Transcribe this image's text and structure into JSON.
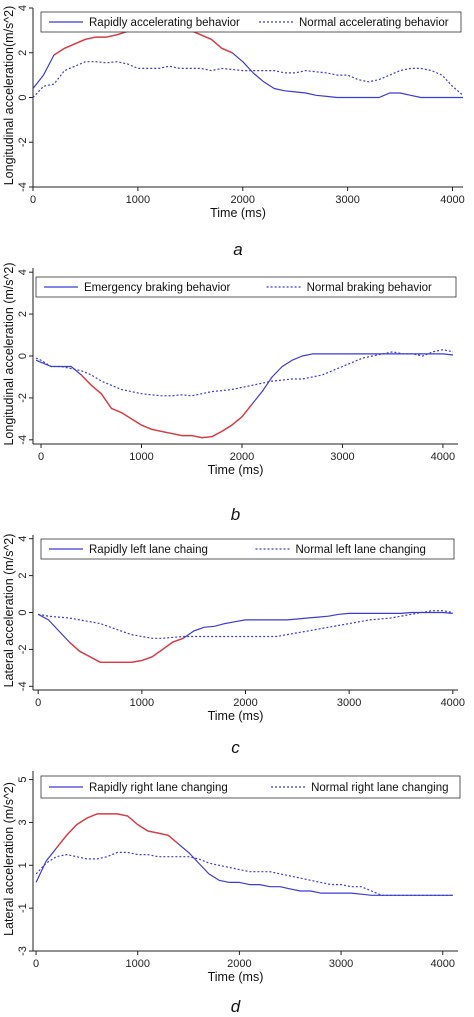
{
  "chart_data": [
    {
      "type": "line",
      "panel_label": "a",
      "xlabel": "Time (ms)",
      "ylabel": "Longitudinal acceleration(m/s^2)",
      "xlim": [
        0,
        4100
      ],
      "ylim": [
        -4,
        4
      ],
      "xticks": [
        0,
        1000,
        2000,
        3000,
        4000
      ],
      "yticks": [
        -4,
        -2,
        0,
        2,
        4
      ],
      "legend_position": "top",
      "series": [
        {
          "name": "Rapidly accelerating behavior",
          "style": "solid",
          "color": "#3b3bd6",
          "highlight_color": "#e03c3c",
          "highlight_range": [
            150,
            1950
          ],
          "x": [
            0,
            100,
            200,
            300,
            400,
            500,
            600,
            700,
            800,
            900,
            1000,
            1100,
            1200,
            1300,
            1400,
            1500,
            1600,
            1700,
            1800,
            1900,
            2000,
            2100,
            2200,
            2300,
            2400,
            2500,
            2600,
            2700,
            2800,
            2900,
            3000,
            3100,
            3200,
            3300,
            3400,
            3500,
            3600,
            3700,
            3800,
            3900,
            4000,
            4100
          ],
          "y": [
            0.4,
            1.0,
            1.9,
            2.2,
            2.4,
            2.6,
            2.7,
            2.7,
            2.8,
            2.95,
            3.05,
            3.15,
            3.2,
            3.1,
            3.05,
            3.0,
            2.8,
            2.6,
            2.2,
            2.0,
            1.6,
            1.1,
            0.7,
            0.4,
            0.3,
            0.25,
            0.2,
            0.1,
            0.05,
            0.0,
            0.0,
            0.0,
            0.0,
            0.0,
            0.2,
            0.2,
            0.1,
            0.0,
            0.0,
            0.0,
            0.0,
            0.0
          ]
        },
        {
          "name": "Normal accelerating behavior",
          "style": "dotted",
          "color": "#3b3bd6",
          "x": [
            0,
            100,
            200,
            300,
            400,
            500,
            600,
            700,
            800,
            900,
            1000,
            1100,
            1200,
            1300,
            1400,
            1500,
            1600,
            1700,
            1800,
            1900,
            2000,
            2100,
            2200,
            2300,
            2400,
            2500,
            2600,
            2700,
            2800,
            2900,
            3000,
            3100,
            3200,
            3300,
            3400,
            3500,
            3600,
            3700,
            3800,
            3900,
            4000,
            4100
          ],
          "y": [
            0.0,
            0.5,
            0.6,
            1.2,
            1.4,
            1.6,
            1.6,
            1.55,
            1.6,
            1.5,
            1.3,
            1.3,
            1.3,
            1.4,
            1.3,
            1.3,
            1.3,
            1.2,
            1.3,
            1.25,
            1.2,
            1.2,
            1.2,
            1.2,
            1.1,
            1.1,
            1.2,
            1.15,
            1.1,
            1.0,
            1.0,
            0.8,
            0.7,
            0.8,
            1.0,
            1.2,
            1.3,
            1.3,
            1.2,
            1.0,
            0.5,
            0.1
          ]
        }
      ]
    },
    {
      "type": "line",
      "panel_label": "b",
      "xlabel": "Time (ms)",
      "ylabel": "Longitudinal acceleration (m/s^2)",
      "xlim": [
        -80,
        4150
      ],
      "ylim": [
        -4.2,
        4.2
      ],
      "xticks": [
        0,
        1000,
        2000,
        3000,
        4000
      ],
      "yticks": [
        -4,
        -2,
        0,
        2,
        4
      ],
      "legend_position": "top",
      "series": [
        {
          "name": "Emergency braking behavior",
          "style": "solid",
          "color": "#3b3bd6",
          "highlight_color": "#e03c3c",
          "highlight_range": [
            350,
            2150
          ],
          "x": [
            -50,
            0,
            100,
            200,
            300,
            400,
            500,
            600,
            700,
            800,
            900,
            1000,
            1100,
            1200,
            1300,
            1400,
            1500,
            1600,
            1700,
            1800,
            1900,
            2000,
            2100,
            2200,
            2300,
            2400,
            2500,
            2600,
            2700,
            2800,
            2900,
            3000,
            3100,
            3200,
            3300,
            3400,
            3500,
            3600,
            3700,
            3800,
            3900,
            4000,
            4100
          ],
          "y": [
            -0.2,
            -0.3,
            -0.5,
            -0.5,
            -0.5,
            -0.9,
            -1.4,
            -1.8,
            -2.5,
            -2.7,
            -3.0,
            -3.3,
            -3.5,
            -3.6,
            -3.7,
            -3.8,
            -3.8,
            -3.9,
            -3.85,
            -3.6,
            -3.3,
            -2.9,
            -2.3,
            -1.7,
            -1.0,
            -0.5,
            -0.2,
            0.0,
            0.1,
            0.1,
            0.1,
            0.1,
            0.1,
            0.1,
            0.1,
            0.1,
            0.1,
            0.1,
            0.1,
            0.1,
            0.1,
            0.1,
            0.05
          ]
        },
        {
          "name": "Normal braking behavior",
          "style": "dotted",
          "color": "#3b3bd6",
          "x": [
            -50,
            0,
            100,
            200,
            300,
            400,
            500,
            600,
            700,
            800,
            900,
            1000,
            1100,
            1200,
            1300,
            1400,
            1500,
            1600,
            1700,
            1800,
            1900,
            2000,
            2100,
            2200,
            2300,
            2400,
            2500,
            2600,
            2700,
            2800,
            2900,
            3000,
            3100,
            3200,
            3300,
            3400,
            3500,
            3600,
            3700,
            3800,
            3900,
            4000,
            4100
          ],
          "y": [
            -0.1,
            -0.2,
            -0.5,
            -0.5,
            -0.6,
            -0.7,
            -0.9,
            -1.2,
            -1.4,
            -1.6,
            -1.7,
            -1.8,
            -1.85,
            -1.9,
            -1.9,
            -1.85,
            -1.9,
            -1.8,
            -1.7,
            -1.65,
            -1.6,
            -1.5,
            -1.4,
            -1.3,
            -1.2,
            -1.15,
            -1.1,
            -1.1,
            -1.0,
            -0.9,
            -0.7,
            -0.5,
            -0.3,
            -0.1,
            0.0,
            0.1,
            0.2,
            0.1,
            0.1,
            0.0,
            0.2,
            0.3,
            0.2
          ]
        }
      ]
    },
    {
      "type": "line",
      "panel_label": "c",
      "xlabel": "Time (ms)",
      "ylabel": "Lateral acceleration (m/s^2)",
      "xlim": [
        -50,
        4050
      ],
      "ylim": [
        -4.2,
        4.2
      ],
      "xticks": [
        0,
        1000,
        2000,
        3000,
        4000
      ],
      "yticks": [
        -4,
        -2,
        0,
        2,
        4
      ],
      "legend_position": "top",
      "series": [
        {
          "name": "Rapidly left lane chaing",
          "style": "solid",
          "color": "#3b3bd6",
          "highlight_color": "#e03c3c",
          "highlight_range": [
            300,
            1400
          ],
          "x": [
            0,
            100,
            200,
            300,
            400,
            500,
            600,
            700,
            800,
            900,
            1000,
            1100,
            1200,
            1300,
            1400,
            1500,
            1600,
            1700,
            1800,
            1900,
            2000,
            2100,
            2200,
            2300,
            2400,
            2500,
            2600,
            2700,
            2800,
            2900,
            3000,
            3100,
            3200,
            3300,
            3400,
            3500,
            3600,
            3700,
            3800,
            3900,
            4000
          ],
          "y": [
            -0.1,
            -0.4,
            -1.0,
            -1.6,
            -2.1,
            -2.4,
            -2.7,
            -2.7,
            -2.7,
            -2.7,
            -2.6,
            -2.4,
            -2.0,
            -1.6,
            -1.4,
            -1.0,
            -0.8,
            -0.75,
            -0.6,
            -0.5,
            -0.4,
            -0.4,
            -0.4,
            -0.4,
            -0.4,
            -0.35,
            -0.3,
            -0.25,
            -0.2,
            -0.1,
            -0.05,
            -0.05,
            -0.05,
            -0.05,
            -0.05,
            -0.05,
            0.0,
            0.0,
            0.0,
            0.0,
            -0.05
          ]
        },
        {
          "name": "Normal left lane changing",
          "style": "dotted",
          "color": "#3b3bd6",
          "x": [
            0,
            100,
            200,
            300,
            400,
            500,
            600,
            700,
            800,
            900,
            1000,
            1100,
            1200,
            1300,
            1400,
            1500,
            1600,
            1700,
            1800,
            1900,
            2000,
            2100,
            2200,
            2300,
            2400,
            2500,
            2600,
            2700,
            2800,
            2900,
            3000,
            3100,
            3200,
            3300,
            3400,
            3500,
            3600,
            3700,
            3800,
            3900,
            4000
          ],
          "y": [
            -0.1,
            -0.2,
            -0.25,
            -0.3,
            -0.4,
            -0.5,
            -0.6,
            -0.8,
            -1.0,
            -1.2,
            -1.3,
            -1.4,
            -1.4,
            -1.35,
            -1.3,
            -1.3,
            -1.3,
            -1.3,
            -1.3,
            -1.3,
            -1.3,
            -1.3,
            -1.3,
            -1.3,
            -1.2,
            -1.1,
            -1.0,
            -0.9,
            -0.8,
            -0.7,
            -0.6,
            -0.5,
            -0.4,
            -0.35,
            -0.3,
            -0.2,
            -0.1,
            0.0,
            0.1,
            0.1,
            0.0
          ]
        }
      ]
    },
    {
      "type": "line",
      "panel_label": "d",
      "xlabel": "Time (ms)",
      "ylabel": "Lateral acceleration (m/s^2)",
      "xlim": [
        -30,
        4150
      ],
      "ylim": [
        -3,
        5.4
      ],
      "xticks": [
        0,
        1000,
        2000,
        3000,
        4000
      ],
      "yticks": [
        -3,
        -1,
        1,
        3,
        5
      ],
      "legend_position": "top",
      "series": [
        {
          "name": "Rapidly right lane changing",
          "style": "solid",
          "color": "#3b3bd6",
          "highlight_color": "#e03c3c",
          "highlight_range": [
            150,
            1450
          ],
          "x": [
            0,
            100,
            200,
            300,
            400,
            500,
            600,
            700,
            800,
            900,
            1000,
            1100,
            1200,
            1300,
            1400,
            1500,
            1600,
            1700,
            1800,
            1900,
            2000,
            2100,
            2200,
            2300,
            2400,
            2500,
            2600,
            2700,
            2800,
            2900,
            3000,
            3100,
            3200,
            3300,
            3400,
            3500,
            3600,
            3700,
            3800,
            3900,
            4000,
            4100
          ],
          "y": [
            0.2,
            1.2,
            1.8,
            2.4,
            2.9,
            3.2,
            3.4,
            3.4,
            3.4,
            3.3,
            2.9,
            2.6,
            2.5,
            2.4,
            2.0,
            1.6,
            1.1,
            0.6,
            0.3,
            0.2,
            0.2,
            0.1,
            0.1,
            0.0,
            0.0,
            -0.1,
            -0.2,
            -0.2,
            -0.3,
            -0.3,
            -0.3,
            -0.3,
            -0.35,
            -0.4,
            -0.4,
            -0.4,
            -0.4,
            -0.4,
            -0.4,
            -0.4,
            -0.4,
            -0.4
          ]
        },
        {
          "name": "Normal right lane changing",
          "style": "dotted",
          "color": "#3b3bd6",
          "x": [
            0,
            100,
            200,
            300,
            400,
            500,
            600,
            700,
            800,
            900,
            1000,
            1100,
            1200,
            1300,
            1400,
            1500,
            1600,
            1700,
            1800,
            1900,
            2000,
            2100,
            2200,
            2300,
            2400,
            2500,
            2600,
            2700,
            2800,
            2900,
            3000,
            3100,
            3200,
            3300,
            3400,
            3500,
            3600,
            3700,
            3800,
            3900,
            4000,
            4100
          ],
          "y": [
            0.6,
            1.1,
            1.4,
            1.5,
            1.4,
            1.3,
            1.3,
            1.4,
            1.6,
            1.6,
            1.5,
            1.5,
            1.4,
            1.4,
            1.4,
            1.4,
            1.3,
            1.1,
            1.0,
            0.9,
            0.8,
            0.7,
            0.7,
            0.7,
            0.6,
            0.5,
            0.4,
            0.3,
            0.2,
            0.1,
            0.1,
            0.0,
            0.0,
            -0.2,
            -0.4,
            -0.4,
            -0.4,
            -0.4,
            -0.4,
            -0.4,
            -0.4,
            -0.4
          ]
        }
      ]
    }
  ]
}
